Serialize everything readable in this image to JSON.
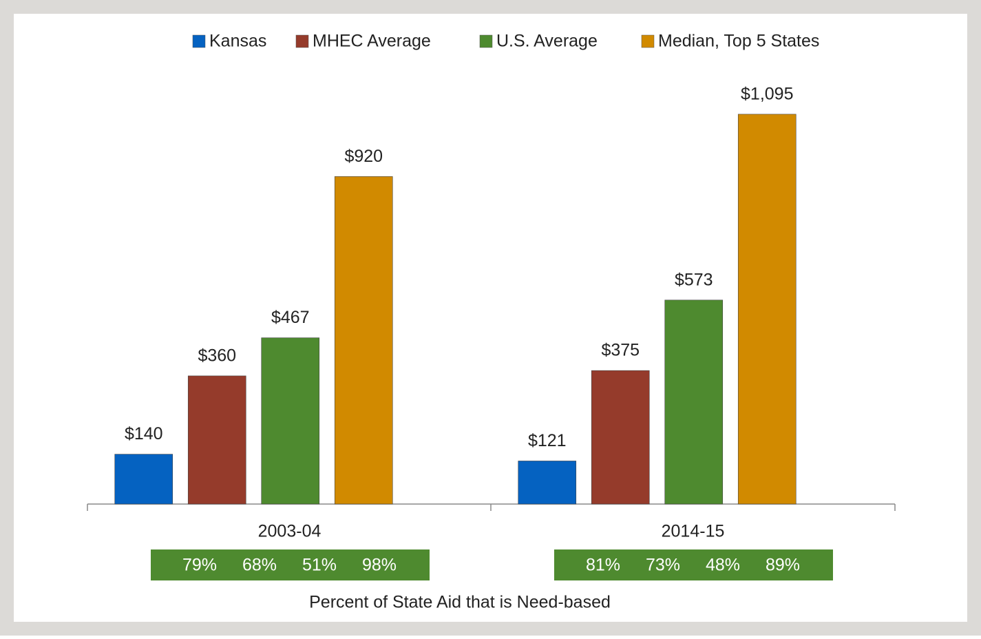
{
  "chart_data": {
    "type": "bar",
    "categories": [
      "2003-04",
      "2014-15"
    ],
    "series": [
      {
        "name": "Kansas",
        "color": "#0562c1",
        "values": [
          140,
          121
        ],
        "value_labels": [
          "$140",
          "$121"
        ]
      },
      {
        "name": "MHEC Average",
        "color": "#953b2b",
        "values": [
          360,
          375
        ],
        "value_labels": [
          "$360",
          "$375"
        ]
      },
      {
        "name": "U.S. Average",
        "color": "#4e8a2f",
        "values": [
          467,
          573
        ],
        "value_labels": [
          "$467",
          "$573"
        ]
      },
      {
        "name": "Median, Top 5 States",
        "color": "#d18a00",
        "values": [
          920,
          1095
        ],
        "value_labels": [
          "$920",
          "$1,095"
        ]
      }
    ],
    "need_based": {
      "title": "Percent of State Aid that is Need-based",
      "color": "#4e8a2f",
      "values": [
        [
          79,
          68,
          51,
          98
        ],
        [
          81,
          73,
          48,
          89
        ]
      ],
      "value_labels": [
        [
          "79%",
          "68%",
          "51%",
          "98%"
        ],
        [
          "81%",
          "73%",
          "48%",
          "89%"
        ]
      ]
    },
    "legend": "top"
  }
}
